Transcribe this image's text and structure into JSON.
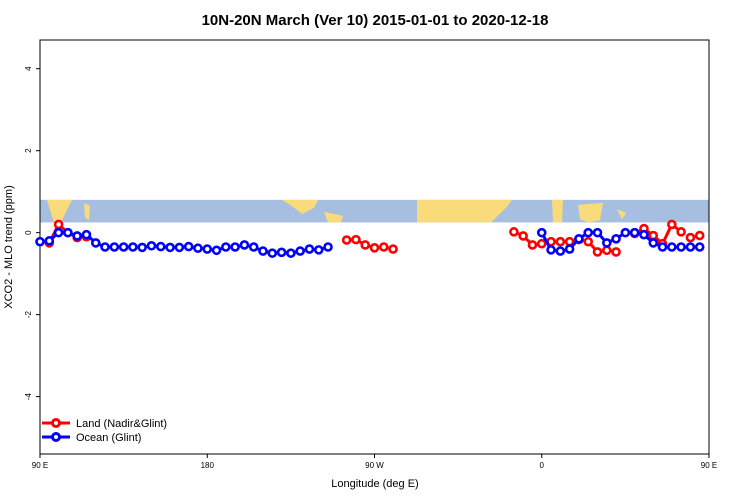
{
  "chart_data": {
    "type": "line",
    "title": "10N-20N March (Ver 10)   2015-01-01 to 2020-12-18",
    "xlabel": "Longitude (deg E)",
    "ylabel": "XCO2 - MLO trend (ppm)",
    "xlim": [
      90,
      450
    ],
    "ylim": [
      -5.4,
      4.7
    ],
    "x_ticks": [
      {
        "value": 90,
        "label": "90 E"
      },
      {
        "value": 180,
        "label": "180"
      },
      {
        "value": 270,
        "label": "90 W"
      },
      {
        "value": 360,
        "label": "0"
      },
      {
        "value": 450,
        "label": "90 E"
      },
      {
        "value": 540,
        "label": "180"
      }
    ],
    "y_ticks": [
      {
        "value": 4,
        "label": "4"
      },
      {
        "value": 2,
        "label": "2"
      },
      {
        "value": 0,
        "label": "0"
      },
      {
        "value": -2,
        "label": "-2"
      },
      {
        "value": -4,
        "label": "-4"
      }
    ],
    "grid": false,
    "legend_position": "bottom-left",
    "map_band": {
      "y_from": 0.25,
      "y_to": 0.8,
      "ocean_color": "#a6bfe0",
      "land_color": "#f9db7c"
    },
    "series": [
      {
        "name": "Land (Nadir&Glint)",
        "color": "#ff0000",
        "segments": [
          [
            [
              95,
              -0.25
            ],
            [
              100,
              0.2
            ],
            [
              105,
              0.0
            ],
            [
              110,
              -0.12
            ],
            [
              115,
              -0.1
            ]
          ],
          [
            [
              255,
              -0.18
            ],
            [
              260,
              -0.17
            ],
            [
              265,
              -0.3
            ],
            [
              270,
              -0.37
            ],
            [
              275,
              -0.35
            ],
            [
              280,
              -0.4
            ]
          ],
          [
            [
              345,
              0.02
            ],
            [
              350,
              -0.08
            ],
            [
              355,
              -0.3
            ],
            [
              360,
              -0.27
            ],
            [
              365,
              -0.22
            ],
            [
              370,
              -0.22
            ]
          ],
          [
            [
              375,
              -0.22
            ],
            [
              380,
              -0.17
            ],
            [
              385,
              -0.22
            ],
            [
              390,
              -0.47
            ],
            [
              395,
              -0.43
            ],
            [
              400,
              -0.47
            ]
          ],
          [
            [
              410,
              -0.02
            ],
            [
              415,
              0.1
            ],
            [
              420,
              -0.07
            ],
            [
              425,
              -0.27
            ],
            [
              430,
              0.2
            ],
            [
              435,
              0.02
            ]
          ],
          [
            [
              440,
              -0.12
            ],
            [
              445,
              -0.07
            ]
          ]
        ]
      },
      {
        "name": "Ocean (Glint)",
        "color": "#0000ff",
        "segments": [
          [
            [
              90,
              -0.22
            ],
            [
              95,
              -0.2
            ],
            [
              100,
              0.0
            ],
            [
              105,
              0.0
            ],
            [
              110,
              -0.08
            ],
            [
              115,
              -0.05
            ],
            [
              120,
              -0.25
            ],
            [
              125,
              -0.35
            ],
            [
              130,
              -0.35
            ],
            [
              135,
              -0.35
            ],
            [
              140,
              -0.35
            ],
            [
              145,
              -0.36
            ],
            [
              150,
              -0.32
            ],
            [
              155,
              -0.34
            ],
            [
              160,
              -0.36
            ],
            [
              165,
              -0.36
            ],
            [
              170,
              -0.34
            ],
            [
              175,
              -0.38
            ],
            [
              180,
              -0.4
            ],
            [
              185,
              -0.43
            ],
            [
              190,
              -0.35
            ],
            [
              195,
              -0.35
            ],
            [
              200,
              -0.3
            ],
            [
              205,
              -0.35
            ],
            [
              210,
              -0.45
            ],
            [
              215,
              -0.5
            ],
            [
              220,
              -0.48
            ],
            [
              225,
              -0.5
            ],
            [
              230,
              -0.45
            ],
            [
              235,
              -0.4
            ],
            [
              240,
              -0.42
            ],
            [
              245,
              -0.35
            ]
          ],
          [
            [
              360,
              0.0
            ],
            [
              365,
              -0.42
            ],
            [
              370,
              -0.45
            ],
            [
              375,
              -0.4
            ],
            [
              380,
              -0.15
            ],
            [
              385,
              0.0
            ],
            [
              390,
              0.0
            ],
            [
              395,
              -0.25
            ],
            [
              400,
              -0.15
            ],
            [
              405,
              0.0
            ],
            [
              410,
              0.0
            ],
            [
              415,
              -0.05
            ],
            [
              420,
              -0.25
            ],
            [
              425,
              -0.35
            ],
            [
              430,
              -0.35
            ],
            [
              435,
              -0.35
            ],
            [
              440,
              -0.35
            ],
            [
              445,
              -0.35
            ]
          ]
        ]
      }
    ]
  }
}
